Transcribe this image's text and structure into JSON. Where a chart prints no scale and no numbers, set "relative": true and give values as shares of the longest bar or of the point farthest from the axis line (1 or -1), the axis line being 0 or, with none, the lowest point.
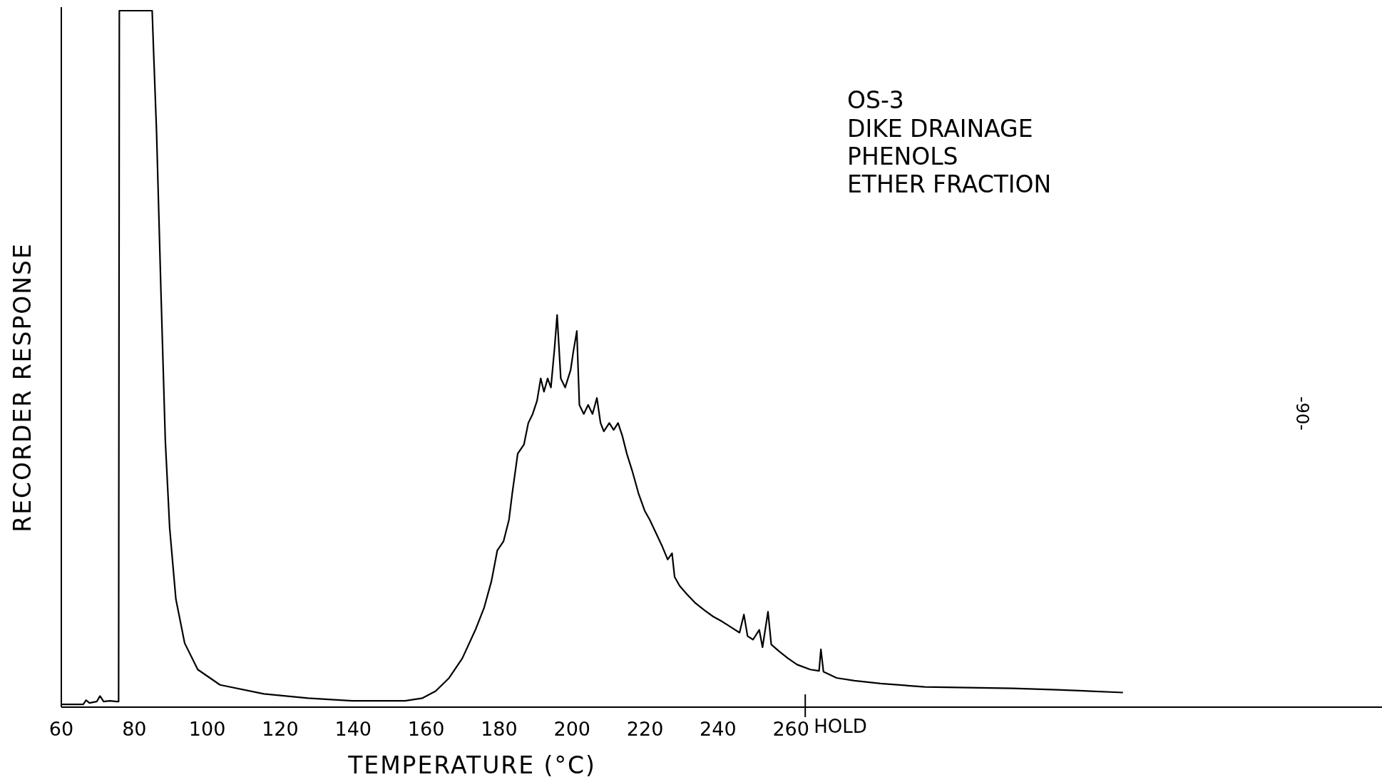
{
  "chart_data": {
    "type": "line",
    "relative": true,
    "title": "OS-3",
    "subtitle": "DIKE DRAINAGE\nPHENOLS\nETHER FRACTION",
    "xlabel": "TEMPERATURE (°C)",
    "ylabel": "RECORDER RESPONSE",
    "xlim": [
      60,
      422
    ],
    "xticks": [
      60,
      80,
      100,
      120,
      140,
      160,
      180,
      200,
      220,
      240,
      260
    ],
    "annotations": [
      "HOLD",
      "-90-"
    ],
    "series": [
      {
        "color": "#000000",
        "x": [
          60,
          66,
          66.8,
          67.7,
          69.7,
          70.6,
          71.6,
          73.3,
          75.2,
          75.7,
          75.9,
          84.9,
          85.3,
          86.1,
          87.3,
          88.5,
          89.7,
          91.4,
          93.8,
          97.4,
          103.5,
          115.5,
          127.6,
          139.7,
          154.2,
          159,
          162.6,
          166.3,
          169.9,
          173.5,
          175.9,
          177.9,
          179.5,
          181.2,
          182.7,
          183.6,
          185.1,
          186.8,
          188,
          189.2,
          190.4,
          191.4,
          192.3,
          193.3,
          194.2,
          195.2,
          195.9,
          196.9,
          198.1,
          199.6,
          200.3,
          201.3,
          202,
          203.2,
          204.4,
          205.6,
          206.8,
          207.8,
          208.7,
          210.2,
          211.4,
          212.6,
          213.8,
          215,
          216.5,
          218.2,
          219.9,
          221.3,
          223,
          224.7,
          226.2,
          227.4,
          228.1,
          229.5,
          231.5,
          233.9,
          236.3,
          238.7,
          241.1,
          243.5,
          245.9,
          247.1,
          248.1,
          249.6,
          251.3,
          252.2,
          253.7,
          254.6,
          256.8,
          259.2,
          261.7,
          265.3,
          267.7,
          268.2,
          268.9,
          272.5,
          277.4,
          284.6,
          296.7,
          308.7,
          320.8,
          332.9,
          351
        ],
        "values": [
          0.004,
          0.004,
          0.01,
          0.006,
          0.008,
          0.016,
          0.008,
          0.009,
          0.008,
          0.008,
          1,
          1,
          0.94,
          0.826,
          0.598,
          0.383,
          0.257,
          0.155,
          0.092,
          0.054,
          0.032,
          0.019,
          0.013,
          0.009,
          0.009,
          0.013,
          0.023,
          0.042,
          0.07,
          0.111,
          0.143,
          0.181,
          0.225,
          0.238,
          0.269,
          0.307,
          0.364,
          0.377,
          0.408,
          0.421,
          0.44,
          0.472,
          0.453,
          0.472,
          0.459,
          0.516,
          0.563,
          0.472,
          0.459,
          0.484,
          0.509,
          0.54,
          0.434,
          0.421,
          0.434,
          0.421,
          0.444,
          0.408,
          0.396,
          0.408,
          0.398,
          0.408,
          0.389,
          0.364,
          0.339,
          0.307,
          0.282,
          0.269,
          0.25,
          0.231,
          0.212,
          0.221,
          0.187,
          0.174,
          0.162,
          0.149,
          0.139,
          0.13,
          0.123,
          0.115,
          0.107,
          0.133,
          0.102,
          0.097,
          0.111,
          0.086,
          0.137,
          0.09,
          0.08,
          0.07,
          0.061,
          0.054,
          0.052,
          0.083,
          0.051,
          0.042,
          0.038,
          0.034,
          0.029,
          0.028,
          0.027,
          0.025,
          0.021
        ]
      }
    ]
  }
}
